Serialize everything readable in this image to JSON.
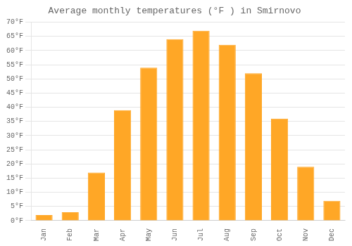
{
  "chart_data": {
    "type": "bar",
    "title": "Average monthly temperatures (°F ) in Smirnovo",
    "categories": [
      "Jan",
      "Feb",
      "Mar",
      "Apr",
      "May",
      "Jun",
      "Jul",
      "Aug",
      "Sep",
      "Oct",
      "Nov",
      "Dec"
    ],
    "values": [
      2,
      3,
      17,
      39,
      54,
      64,
      67,
      62,
      52,
      36,
      19,
      7
    ],
    "color": "#FFA726",
    "ylim": [
      0,
      70
    ],
    "yticks": [
      {
        "value": 0,
        "label": "0°F"
      },
      {
        "value": 5,
        "label": "5°F"
      },
      {
        "value": 10,
        "label": "10°F"
      },
      {
        "value": 15,
        "label": "15°F"
      },
      {
        "value": 20,
        "label": "20°F"
      },
      {
        "value": 25,
        "label": "25°F"
      },
      {
        "value": 30,
        "label": "30°F"
      },
      {
        "value": 35,
        "label": "35°F"
      },
      {
        "value": 40,
        "label": "40°F"
      },
      {
        "value": 45,
        "label": "45°F"
      },
      {
        "value": 50,
        "label": "50°F"
      },
      {
        "value": 55,
        "label": "55°F"
      },
      {
        "value": 60,
        "label": "60°F"
      },
      {
        "value": 65,
        "label": "65°F"
      },
      {
        "value": 70,
        "label": "70°F"
      }
    ],
    "grid": true
  }
}
